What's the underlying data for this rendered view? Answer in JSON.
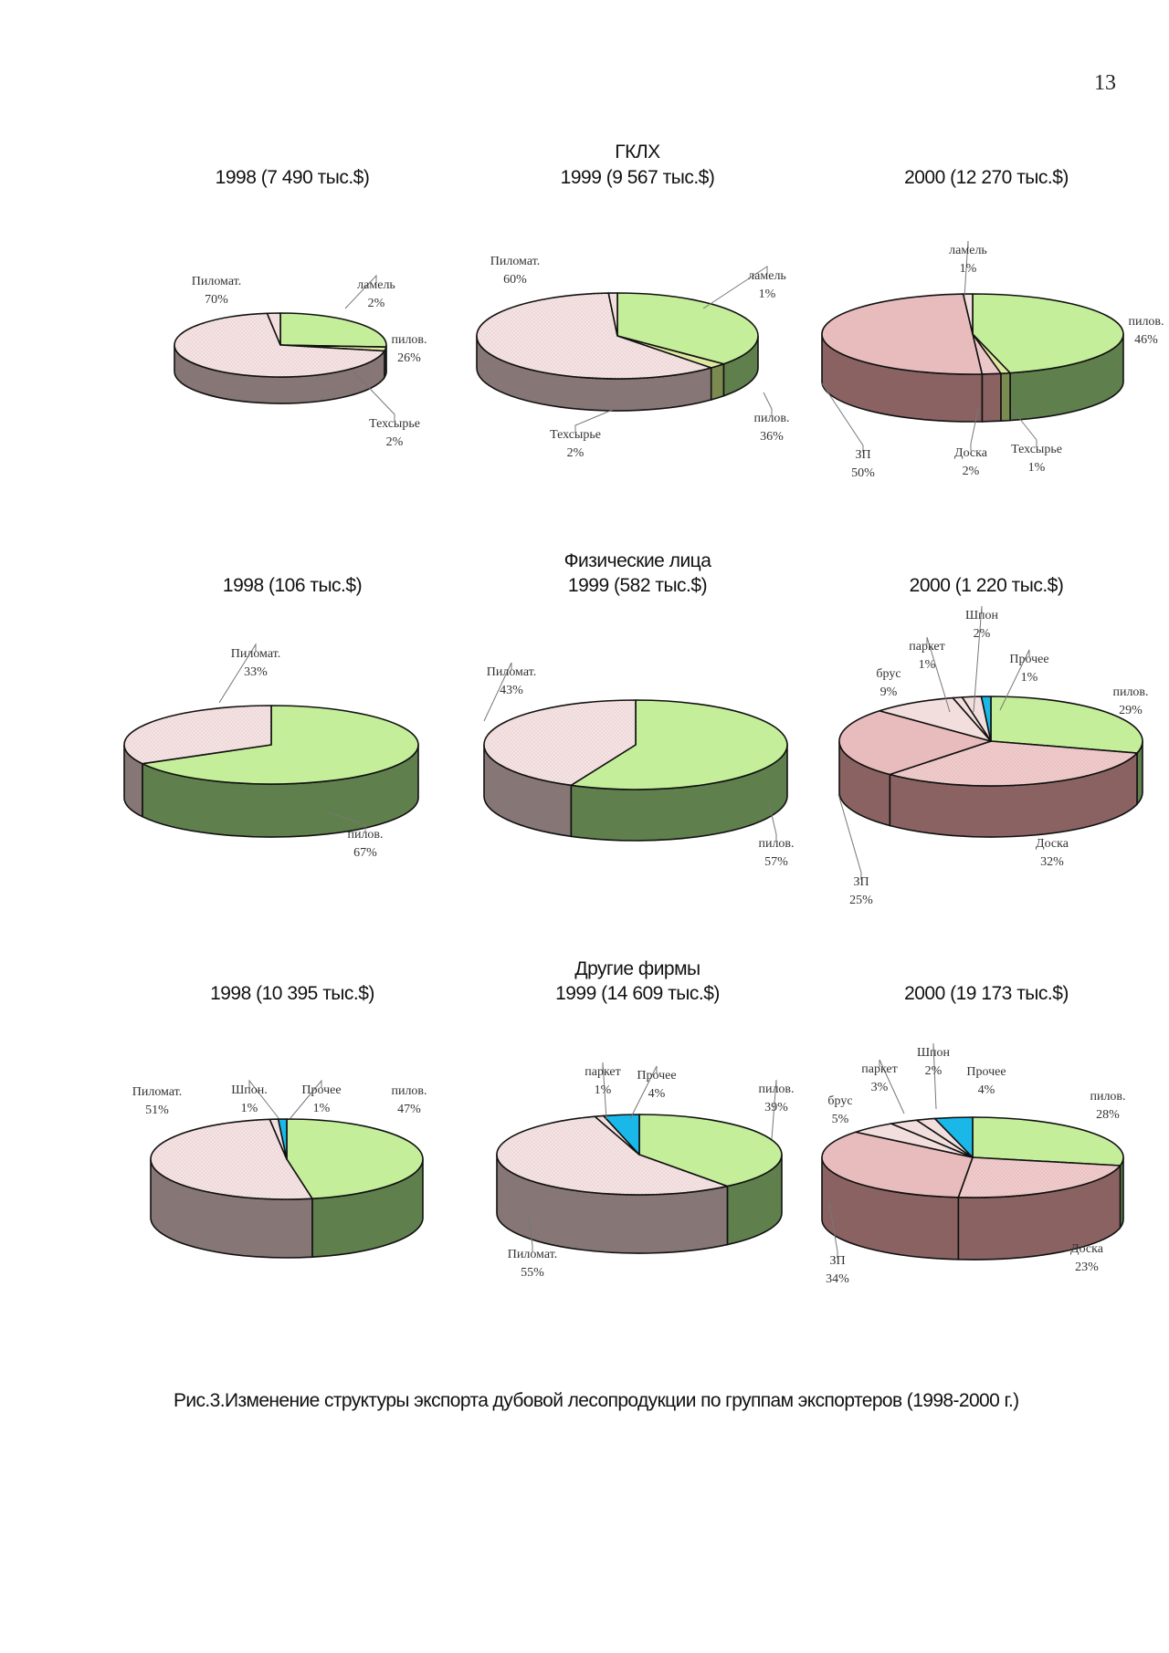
{
  "page_number": "13",
  "caption": "Рис.3.Изменение структуры экспорта дубовой лесопродукции по группам экспортеров (1998-2000 г.)",
  "colors": {
    "pilov_top": "#c4ee9a",
    "pilov_side": "#5f7f4c",
    "pilomat_top": "#f6e4e4",
    "pilomat_side": "#867676",
    "zp_top": "#e8bcbc",
    "zp_side": "#8a6262",
    "doska_top": "#f0cccc",
    "doska_side": "#8a6262",
    "small_top": "#f3dede",
    "small_side": "#8a6262",
    "techsyr_top": "#dfe8a0",
    "techsyr_side": "#7a8a50",
    "prochee_top": "#1ab8e8",
    "prochee_side": "#1488b0",
    "outline": "#111111",
    "leader": "#777777"
  },
  "groups": [
    {
      "title": "ГКЛХ"
    },
    {
      "title": "Физические лица"
    },
    {
      "title": "Другие фирмы"
    }
  ],
  "chart_data": [
    {
      "type": "pie",
      "group": "ГКЛХ",
      "title": "1998 (7 490 тыс.$)",
      "year": 1998,
      "total_thousand_usd": 7490,
      "slices": [
        {
          "label": "пилов.",
          "value": 26
        },
        {
          "label": "Техсырье",
          "value": 2
        },
        {
          "label": "Пиломат.",
          "value": 70
        },
        {
          "label": "ламель",
          "value": 2
        }
      ]
    },
    {
      "type": "pie",
      "group": "ГКЛХ",
      "title": "1999 (9 567 тыс.$)",
      "year": 1999,
      "total_thousand_usd": 9567,
      "slices": [
        {
          "label": "пилов.",
          "value": 36
        },
        {
          "label": "Техсырье",
          "value": 2
        },
        {
          "label": "Пиломат.",
          "value": 60
        },
        {
          "label": "ламель",
          "value": 1
        }
      ]
    },
    {
      "type": "pie",
      "group": "ГКЛХ",
      "title": "2000 (12 270 тыс.$)",
      "year": 2000,
      "total_thousand_usd": 12270,
      "slices": [
        {
          "label": "пилов.",
          "value": 46
        },
        {
          "label": "Техсырье",
          "value": 1
        },
        {
          "label": "Доска",
          "value": 2
        },
        {
          "label": "ЗП",
          "value": 50
        },
        {
          "label": "ламель",
          "value": 1
        }
      ]
    },
    {
      "type": "pie",
      "group": "Физические лица",
      "title": "1998 (106 тыс.$)",
      "year": 1998,
      "total_thousand_usd": 106,
      "slices": [
        {
          "label": "пилов.",
          "value": 67
        },
        {
          "label": "Пиломат.",
          "value": 33
        }
      ]
    },
    {
      "type": "pie",
      "group": "Физические лица",
      "title": "1999 (582 тыс.$)",
      "year": 1999,
      "total_thousand_usd": 582,
      "slices": [
        {
          "label": "пилов.",
          "value": 57
        },
        {
          "label": "Пиломат.",
          "value": 43
        }
      ]
    },
    {
      "type": "pie",
      "group": "Физические лица",
      "title": "2000 (1 220 тыс.$)",
      "year": 2000,
      "total_thousand_usd": 1220,
      "slices": [
        {
          "label": "пилов.",
          "value": 29
        },
        {
          "label": "Доска",
          "value": 32
        },
        {
          "label": "ЗП",
          "value": 25
        },
        {
          "label": "брус",
          "value": 9
        },
        {
          "label": "паркет",
          "value": 1
        },
        {
          "label": "Шпон",
          "value": 2
        },
        {
          "label": "Прочее",
          "value": 1
        }
      ]
    },
    {
      "type": "pie",
      "group": "Другие фирмы",
      "title": "1998 (10 395 тыс.$)",
      "year": 1998,
      "total_thousand_usd": 10395,
      "slices": [
        {
          "label": "пилов.",
          "value": 47
        },
        {
          "label": "Пиломат.",
          "value": 51
        },
        {
          "label": "Шпон.",
          "value": 1
        },
        {
          "label": "Прочее",
          "value": 1
        }
      ]
    },
    {
      "type": "pie",
      "group": "Другие фирмы",
      "title": "1999 (14 609 тыс.$)",
      "year": 1999,
      "total_thousand_usd": 14609,
      "slices": [
        {
          "label": "пилов.",
          "value": 39
        },
        {
          "label": "Пиломат.",
          "value": 55
        },
        {
          "label": "паркет",
          "value": 1
        },
        {
          "label": "Прочее",
          "value": 4
        }
      ]
    },
    {
      "type": "pie",
      "group": "Другие фирмы",
      "title": "2000 (19 173 тыс.$)",
      "year": 2000,
      "total_thousand_usd": 19173,
      "slices": [
        {
          "label": "пилов.",
          "value": 28
        },
        {
          "label": "Доска",
          "value": 23
        },
        {
          "label": "ЗП",
          "value": 34
        },
        {
          "label": "брус",
          "value": 5
        },
        {
          "label": "паркет",
          "value": 3
        },
        {
          "label": "Шпон",
          "value": 2
        },
        {
          "label": "Прочее",
          "value": 4
        }
      ]
    }
  ]
}
